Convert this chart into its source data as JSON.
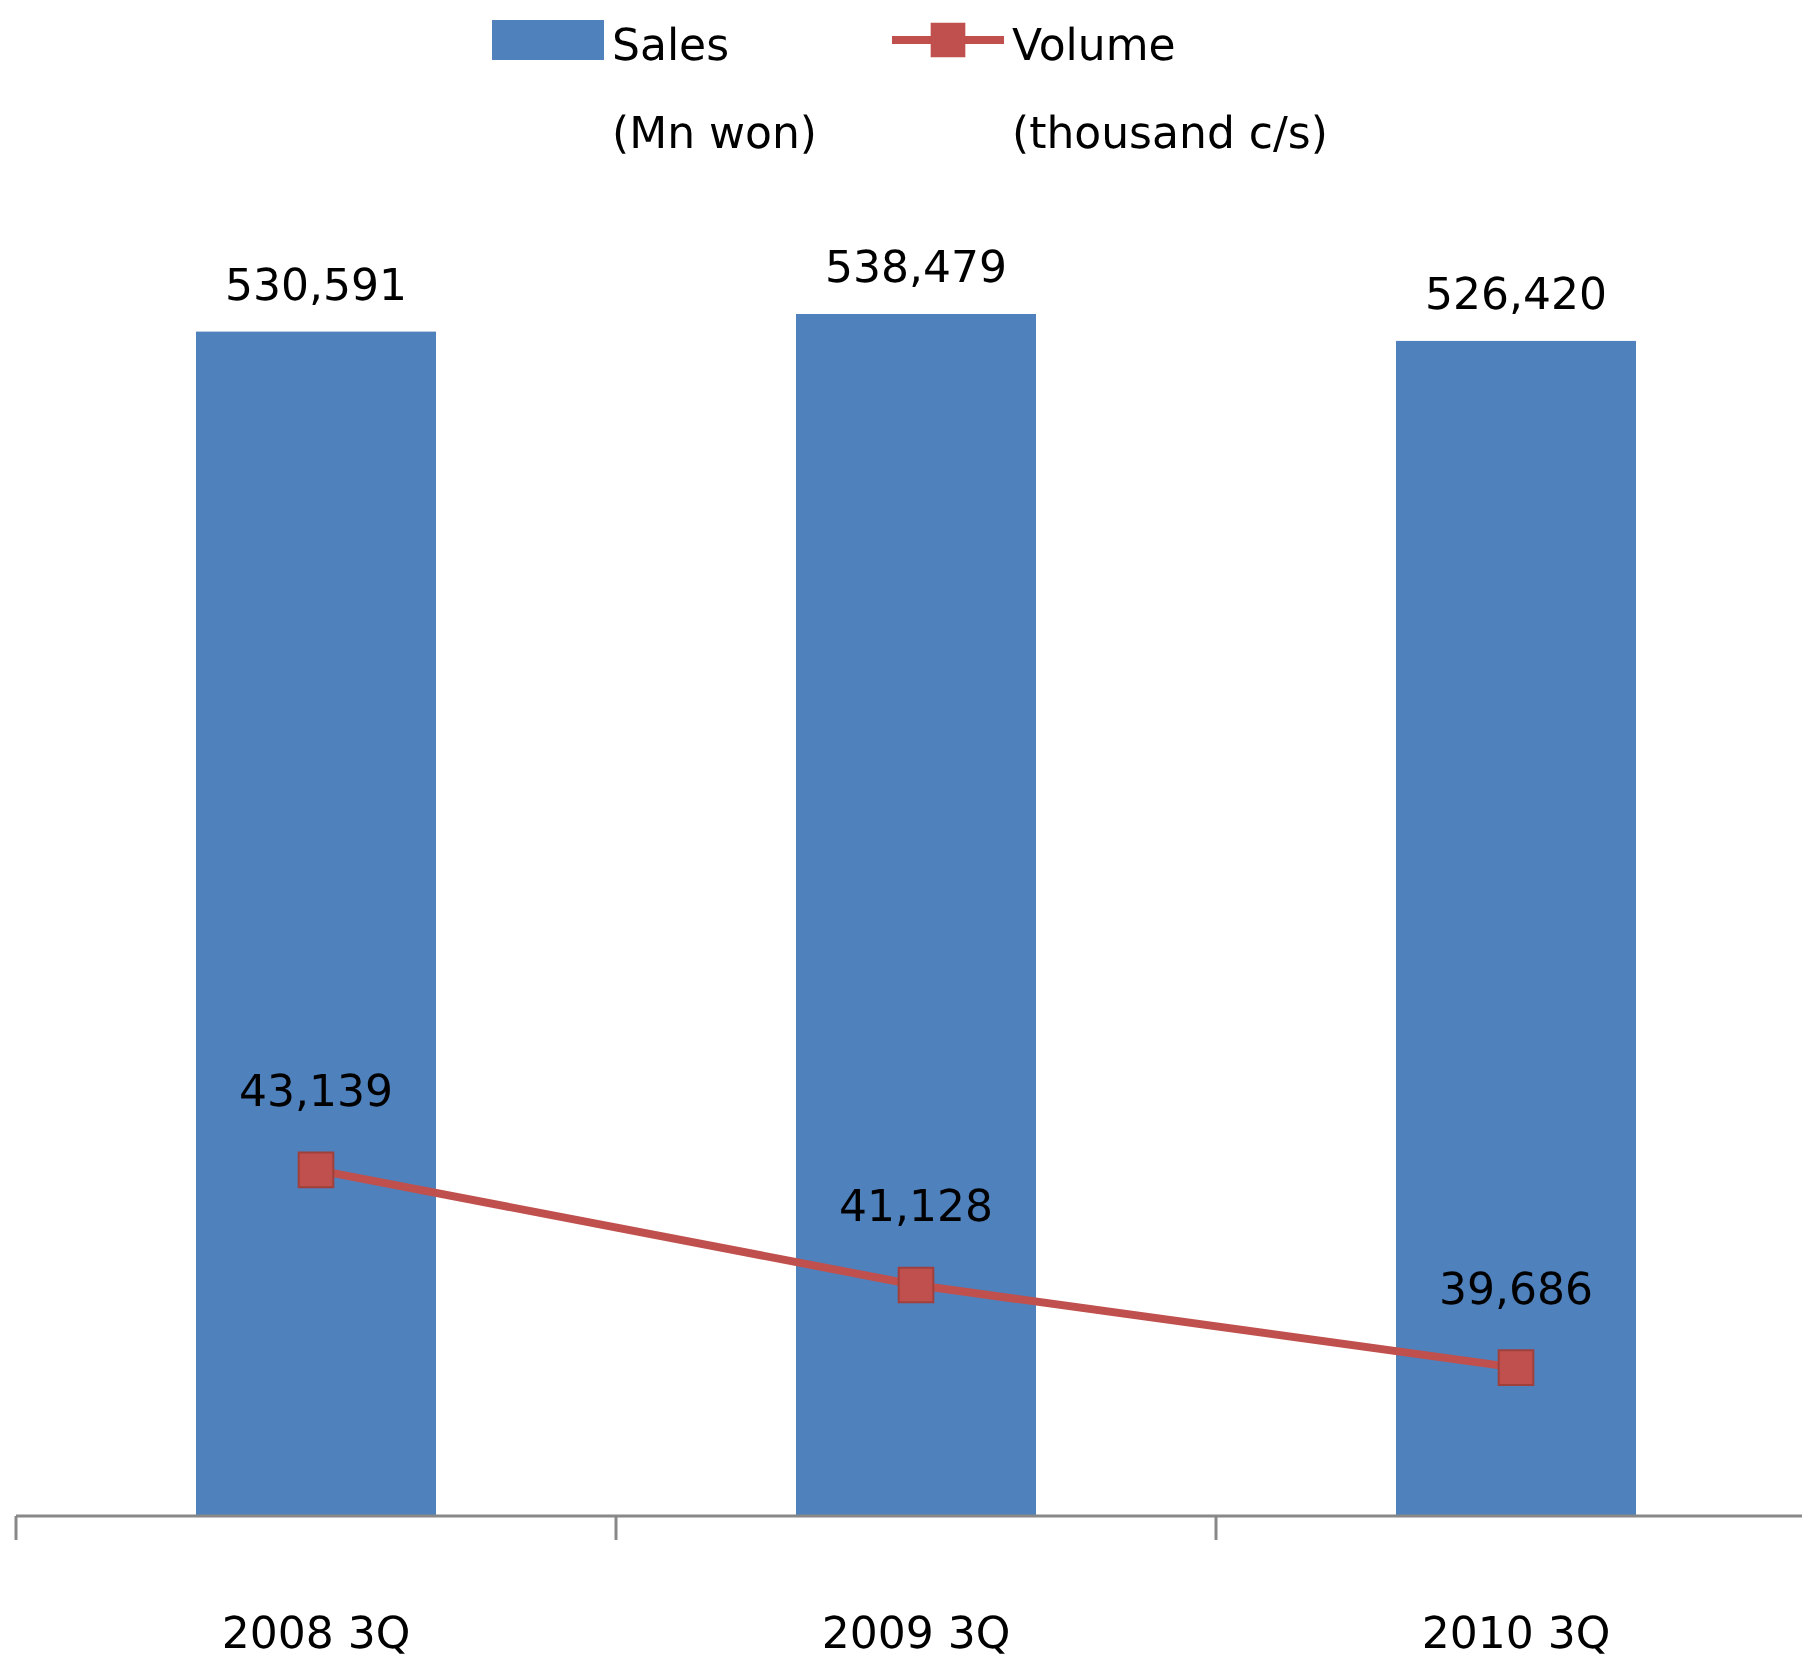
{
  "chart_data": {
    "type": "bar",
    "categories": [
      "2008 3Q",
      "2009 3Q",
      "2010 3Q"
    ],
    "series": [
      {
        "name": "Sales (Mn won)",
        "color": "#4f81bd",
        "values": [
          530591,
          538479,
          526420
        ],
        "value_labels": [
          "530,591",
          "538,479",
          "526,420"
        ]
      },
      {
        "name": "Volume (thousand c/s)",
        "type": "line",
        "axis": "y2",
        "color": "#c0504d",
        "marker": "square",
        "values": [
          43139,
          41128,
          39686
        ],
        "value_labels": [
          "43,139",
          "41,128",
          "39,686"
        ]
      }
    ],
    "legend": "top",
    "tick_labels": "x"
  }
}
